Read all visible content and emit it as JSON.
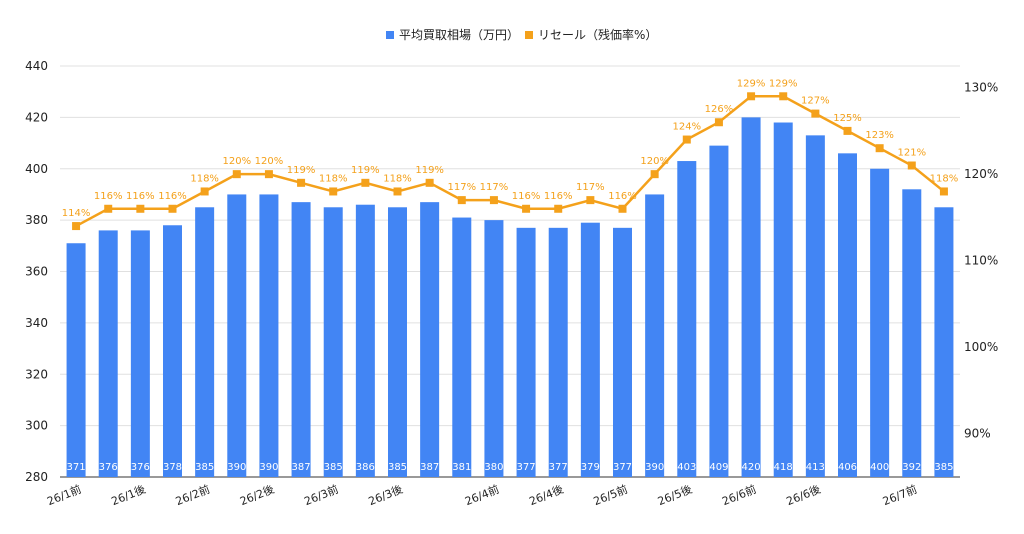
{
  "chart_data": {
    "type": "bar",
    "categories": [
      "26/1前",
      "",
      "26/1後",
      "",
      "26/2前",
      "",
      "26/2後",
      "",
      "26/3前",
      "",
      "26/3後",
      "",
      "",
      "26/4前",
      "",
      "26/4後",
      "",
      "26/5前",
      "",
      "26/5後",
      "",
      "26/6前",
      "",
      "26/6後",
      "",
      "",
      "26/7前",
      ""
    ],
    "series": [
      {
        "name": "平均買取相場（万円）",
        "type": "bar",
        "axis": "left",
        "color": "#4285f4",
        "values": [
          371,
          376,
          376,
          378,
          385,
          390,
          390,
          387,
          385,
          386,
          385,
          387,
          381,
          380,
          377,
          377,
          379,
          377,
          390,
          403,
          409,
          420,
          418,
          413,
          406,
          400,
          392,
          385
        ],
        "labels": [
          "371",
          "376",
          "376",
          "378",
          "385",
          "390",
          "390",
          "387",
          "385",
          "386",
          "385",
          "387",
          "381",
          "380",
          "377",
          "377",
          "379",
          "377",
          "390",
          "403",
          "409",
          "420",
          "418",
          "413",
          "406",
          "400",
          "392",
          "385"
        ]
      },
      {
        "name": "リセール（残価率%）",
        "type": "line",
        "axis": "right",
        "color": "#f4a11b",
        "values": [
          114,
          116,
          116,
          116,
          118,
          120,
          120,
          119,
          118,
          119,
          118,
          119,
          117,
          117,
          116,
          116,
          117,
          116,
          120,
          124,
          126,
          129,
          129,
          127,
          125,
          123,
          121,
          118
        ],
        "labels": [
          "114%",
          "116%",
          "116%",
          "116%",
          "118%",
          "120%",
          "120%",
          "119%",
          "118%",
          "119%",
          "118%",
          "119%",
          "117%",
          "117%",
          "116%",
          "116%",
          "117%",
          "116%",
          "120%",
          "124%",
          "126%",
          "129%",
          "129%",
          "127%",
          "125%",
          "123%",
          "121%",
          "118%"
        ]
      }
    ],
    "y_left": {
      "range": [
        280,
        440
      ],
      "ticks": [
        "280",
        "300",
        "320",
        "340",
        "360",
        "380",
        "400",
        "420",
        "440"
      ]
    },
    "y_right": {
      "range": [
        85,
        132.5
      ],
      "ticks": [
        "90%",
        "100%",
        "110%",
        "120%",
        "130%"
      ],
      "tick_values": [
        90,
        100,
        110,
        120,
        130
      ]
    },
    "grid": true,
    "legend": "top-center",
    "gridline_color": "#e0e0e0"
  }
}
